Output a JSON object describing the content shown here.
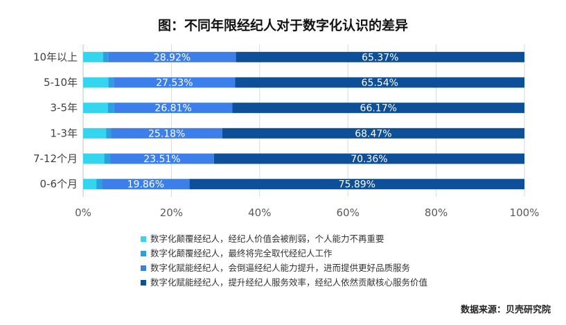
{
  "chart_data": {
    "type": "bar",
    "orientation": "horizontal",
    "stacked": true,
    "title": "图：不同年限经纪人对于数字化认识的差异",
    "categories": [
      "10年以上",
      "5-10年",
      "3-5年",
      "1-3年",
      "7-12个月",
      "0-6个月"
    ],
    "series": [
      {
        "name": "数字化颠覆经纪人，经纪人价值会被削弱，个人能力不再重要",
        "color": "#33d6ee",
        "values": [
          4.5,
          5.7,
          5.6,
          5.2,
          4.8,
          3.0
        ]
      },
      {
        "name": "数字化颠覆经纪人，最终将完全取代经纪人工作",
        "color": "#2aa0e0",
        "values": [
          1.21,
          1.23,
          1.42,
          1.15,
          1.33,
          1.25
        ]
      },
      {
        "name": "数字化赋能经纪人，会倒逼经纪人能力提升，进而提供更好品质服务",
        "color": "#3d7fea",
        "values": [
          28.92,
          27.53,
          26.81,
          25.18,
          23.51,
          19.86
        ],
        "labels": [
          "28.92%",
          "27.53%",
          "26.81%",
          "25.18%",
          "23.51%",
          "19.86%"
        ]
      },
      {
        "name": "数字化赋能经纪人，提升经纪人服务效率，经纪人依然贡献核心服务价值",
        "color": "#0d4f99",
        "values": [
          65.37,
          65.54,
          66.17,
          68.47,
          70.36,
          75.89
        ],
        "labels": [
          "65.37%",
          "65.54%",
          "66.17%",
          "68.47%",
          "70.36%",
          "75.89%"
        ]
      }
    ],
    "xlim": [
      0,
      100
    ],
    "x_ticks": [
      "0%",
      "20%",
      "40%",
      "60%",
      "80%",
      "100%"
    ],
    "grid": true,
    "legend_position": "bottom",
    "source": "数据来源：贝壳研究院"
  }
}
